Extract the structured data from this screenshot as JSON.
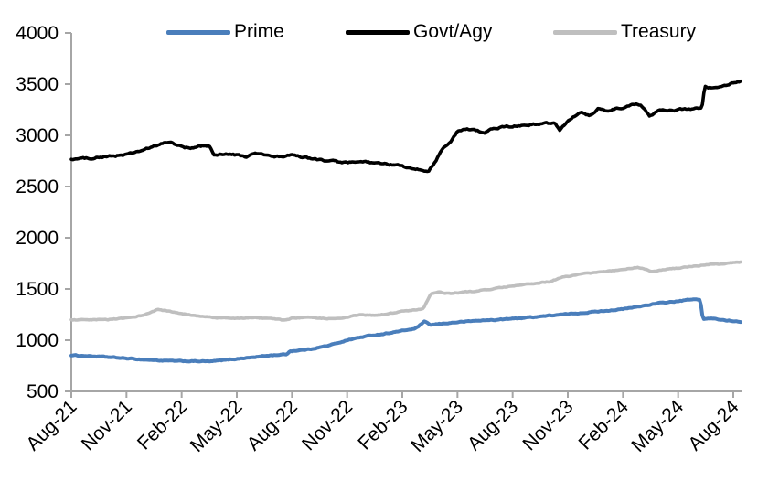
{
  "chart_data": {
    "type": "line",
    "title": "",
    "xlabel": "",
    "ylabel": "",
    "grid": false,
    "legend_position": "top",
    "colors": {
      "prime": "#4a7ebb",
      "govt_agy": "#000000",
      "treasury": "#bfbfbf",
      "axis": "#a6a6a6",
      "text": "#000000"
    },
    "x_axis": {
      "tick_labels": [
        "Aug-21",
        "Nov-21",
        "Feb-22",
        "May-22",
        "Aug-22",
        "Nov-22",
        "Feb-23",
        "May-23",
        "Aug-23",
        "Nov-23",
        "Feb-24",
        "May-24",
        "Aug-24"
      ],
      "tick_month_positions": [
        0,
        3,
        6,
        9,
        12,
        15,
        18,
        21,
        24,
        27,
        30,
        33,
        36
      ],
      "label_rotation_deg": -45
    },
    "y_axis": {
      "min": 500,
      "max": 4000,
      "tick_interval": 500,
      "tick_labels": [
        "500",
        "1000",
        "1500",
        "2000",
        "2500",
        "3000",
        "3500",
        "4000"
      ]
    },
    "series": [
      {
        "name": "Prime",
        "color": "#4a7ebb",
        "points_note": "x = months after Aug-2021, y = value",
        "anchors": [
          [
            0,
            853
          ],
          [
            1,
            845
          ],
          [
            2,
            835
          ],
          [
            3,
            822
          ],
          [
            4,
            810
          ],
          [
            5,
            800
          ],
          [
            6,
            795
          ],
          [
            7,
            794
          ],
          [
            7.6,
            792
          ],
          [
            8,
            800
          ],
          [
            9,
            818
          ],
          [
            10,
            835
          ],
          [
            10.8,
            852
          ],
          [
            11.4,
            858
          ],
          [
            11.7,
            862
          ],
          [
            11.9,
            893
          ],
          [
            12.5,
            903
          ],
          [
            13,
            913
          ],
          [
            14,
            948
          ],
          [
            15,
            1000
          ],
          [
            15.5,
            1020
          ],
          [
            16,
            1038
          ],
          [
            17,
            1062
          ],
          [
            18,
            1092
          ],
          [
            18.7,
            1112
          ],
          [
            19.2,
            1180
          ],
          [
            19.55,
            1148
          ],
          [
            20,
            1158
          ],
          [
            21,
            1176
          ],
          [
            22,
            1190
          ],
          [
            23,
            1198
          ],
          [
            24,
            1210
          ],
          [
            25,
            1225
          ],
          [
            26,
            1240
          ],
          [
            27,
            1255
          ],
          [
            28,
            1270
          ],
          [
            29,
            1287
          ],
          [
            30,
            1303
          ],
          [
            31,
            1333
          ],
          [
            32,
            1363
          ],
          [
            33,
            1380
          ],
          [
            33.6,
            1395
          ],
          [
            34.2,
            1398
          ],
          [
            34.35,
            1205
          ],
          [
            34.8,
            1212
          ],
          [
            35.3,
            1200
          ],
          [
            36,
            1188
          ],
          [
            36.4,
            1183
          ]
        ]
      },
      {
        "name": "Govt/Agy",
        "color": "#000000",
        "points_note": "x = months after Aug-2021, y = value",
        "anchors": [
          [
            0,
            2768
          ],
          [
            1,
            2778
          ],
          [
            2,
            2792
          ],
          [
            3,
            2812
          ],
          [
            4,
            2860
          ],
          [
            5,
            2922
          ],
          [
            5.4,
            2935
          ],
          [
            6,
            2888
          ],
          [
            6.5,
            2870
          ],
          [
            7,
            2892
          ],
          [
            7.5,
            2902
          ],
          [
            7.75,
            2805
          ],
          [
            8.2,
            2820
          ],
          [
            9,
            2808
          ],
          [
            9.5,
            2790
          ],
          [
            10,
            2822
          ],
          [
            10.5,
            2812
          ],
          [
            11,
            2788
          ],
          [
            12,
            2805
          ],
          [
            12.5,
            2790
          ],
          [
            13,
            2772
          ],
          [
            14,
            2750
          ],
          [
            15,
            2732
          ],
          [
            16,
            2738
          ],
          [
            17,
            2720
          ],
          [
            18,
            2702
          ],
          [
            18.5,
            2672
          ],
          [
            19,
            2662
          ],
          [
            19.4,
            2648
          ],
          [
            19.8,
            2748
          ],
          [
            20.2,
            2872
          ],
          [
            20.6,
            2928
          ],
          [
            21,
            3035
          ],
          [
            21.5,
            3062
          ],
          [
            22,
            3048
          ],
          [
            22.5,
            3030
          ],
          [
            23,
            3070
          ],
          [
            24,
            3088
          ],
          [
            25,
            3105
          ],
          [
            26,
            3118
          ],
          [
            26.3,
            3128
          ],
          [
            26.55,
            3052
          ],
          [
            27,
            3140
          ],
          [
            27.7,
            3228
          ],
          [
            28.2,
            3185
          ],
          [
            28.7,
            3262
          ],
          [
            29.1,
            3228
          ],
          [
            29.6,
            3262
          ],
          [
            30,
            3272
          ],
          [
            30.6,
            3308
          ],
          [
            31,
            3295
          ],
          [
            31.45,
            3188
          ],
          [
            32,
            3248
          ],
          [
            32.5,
            3238
          ],
          [
            33,
            3252
          ],
          [
            33.7,
            3258
          ],
          [
            34.3,
            3268
          ],
          [
            34.45,
            3478
          ],
          [
            34.9,
            3458
          ],
          [
            35.3,
            3482
          ],
          [
            36,
            3508
          ],
          [
            36.4,
            3522
          ]
        ]
      },
      {
        "name": "Treasury",
        "color": "#bfbfbf",
        "points_note": "x = months after Aug-2021, y = value",
        "anchors": [
          [
            0,
            1198
          ],
          [
            1,
            1196
          ],
          [
            2,
            1202
          ],
          [
            3,
            1215
          ],
          [
            4,
            1248
          ],
          [
            4.7,
            1300
          ],
          [
            5.2,
            1285
          ],
          [
            6,
            1258
          ],
          [
            7,
            1232
          ],
          [
            8,
            1220
          ],
          [
            9,
            1212
          ],
          [
            10,
            1222
          ],
          [
            11,
            1208
          ],
          [
            11.5,
            1195
          ],
          [
            12,
            1215
          ],
          [
            13,
            1222
          ],
          [
            14,
            1212
          ],
          [
            15,
            1222
          ],
          [
            15.7,
            1248
          ],
          [
            16.5,
            1242
          ],
          [
            17,
            1252
          ],
          [
            18,
            1282
          ],
          [
            18.8,
            1298
          ],
          [
            19.15,
            1310
          ],
          [
            19.55,
            1452
          ],
          [
            20,
            1468
          ],
          [
            20.6,
            1455
          ],
          [
            21,
            1462
          ],
          [
            22,
            1480
          ],
          [
            23,
            1502
          ],
          [
            24,
            1528
          ],
          [
            25,
            1548
          ],
          [
            26,
            1572
          ],
          [
            26.8,
            1618
          ],
          [
            27,
            1625
          ],
          [
            28,
            1650
          ],
          [
            29,
            1670
          ],
          [
            30,
            1688
          ],
          [
            30.8,
            1712
          ],
          [
            31.6,
            1672
          ],
          [
            32.2,
            1688
          ],
          [
            33,
            1705
          ],
          [
            34,
            1728
          ],
          [
            35,
            1742
          ],
          [
            36,
            1756
          ],
          [
            36.4,
            1762
          ]
        ]
      }
    ]
  }
}
